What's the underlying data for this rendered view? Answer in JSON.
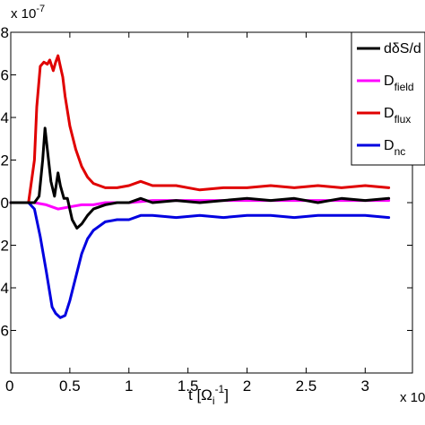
{
  "chart_data": {
    "type": "line",
    "xlabel": "t [Ω",
    "xlabel_sub": "i",
    "xlabel_sup": "-1",
    "xlabel_close": "]",
    "x_exponent": "x 10",
    "y_exponent": "x 10",
    "y_exponent_power": "-7",
    "xlim": [
      0,
      3.4
    ],
    "ylim": [
      -8,
      8
    ],
    "x_ticks": [
      0,
      0.5,
      1,
      1.5,
      2,
      2.5,
      3
    ],
    "x_tick_labels": [
      "0",
      "0.5",
      "1",
      "1.5",
      "2",
      "2.5",
      "3"
    ],
    "y_ticks": [
      8,
      6,
      4,
      2,
      0,
      -2,
      -4,
      -6
    ],
    "y_tick_labels": [
      "8",
      "6",
      "4",
      "2",
      "0",
      "2",
      "4",
      "6"
    ],
    "grid": false,
    "legend_position": "top-right",
    "series": [
      {
        "name": "dδS/dt",
        "legend_main": "dδS/d",
        "legend_sub": "",
        "color": "#000000",
        "x": [
          0,
          0.2,
          0.24,
          0.27,
          0.29,
          0.31,
          0.34,
          0.37,
          0.4,
          0.42,
          0.45,
          0.48,
          0.52,
          0.56,
          0.6,
          0.65,
          0.7,
          0.8,
          0.9,
          1.0,
          1.1,
          1.2,
          1.4,
          1.6,
          1.8,
          2.0,
          2.2,
          2.4,
          2.6,
          2.8,
          3.0,
          3.2
        ],
        "y": [
          0,
          0,
          0.3,
          2.0,
          3.5,
          2.5,
          1.0,
          0.3,
          1.4,
          0.8,
          0.2,
          0.2,
          -0.8,
          -1.2,
          -1.0,
          -0.6,
          -0.3,
          -0.1,
          0.0,
          0.0,
          0.2,
          0.0,
          0.1,
          0.0,
          0.1,
          0.2,
          0.1,
          0.2,
          0.0,
          0.2,
          0.1,
          0.2
        ]
      },
      {
        "name": "Dfield",
        "legend_main": "D",
        "legend_sub": "field",
        "color": "#ff00ff",
        "x": [
          0,
          0.2,
          0.3,
          0.4,
          0.5,
          0.6,
          0.7,
          0.8,
          0.9,
          1.0,
          1.2,
          1.5,
          2.0,
          2.5,
          3.0,
          3.2
        ],
        "y": [
          0,
          0,
          -0.1,
          -0.3,
          -0.2,
          -0.1,
          -0.1,
          0.0,
          0.0,
          0.0,
          0.1,
          0.1,
          0.1,
          0.1,
          0.1,
          0.1
        ]
      },
      {
        "name": "Dflux",
        "legend_main": "D",
        "legend_sub": "flux",
        "color": "#e00000",
        "x": [
          0,
          0.15,
          0.2,
          0.22,
          0.25,
          0.28,
          0.31,
          0.33,
          0.36,
          0.38,
          0.4,
          0.42,
          0.44,
          0.46,
          0.5,
          0.55,
          0.6,
          0.65,
          0.7,
          0.8,
          0.9,
          1.0,
          1.1,
          1.2,
          1.4,
          1.6,
          1.8,
          2.0,
          2.2,
          2.4,
          2.6,
          2.8,
          3.0,
          3.2
        ],
        "y": [
          0,
          0,
          2.0,
          4.5,
          6.4,
          6.6,
          6.5,
          6.7,
          6.2,
          6.6,
          6.9,
          6.4,
          5.9,
          5.0,
          3.6,
          2.5,
          1.7,
          1.2,
          0.9,
          0.7,
          0.7,
          0.8,
          1.0,
          0.8,
          0.8,
          0.6,
          0.7,
          0.7,
          0.8,
          0.7,
          0.8,
          0.7,
          0.8,
          0.7
        ]
      },
      {
        "name": "Dnc",
        "legend_main": "D",
        "legend_sub": "nc",
        "color": "#0000e0",
        "x": [
          0,
          0.15,
          0.2,
          0.25,
          0.3,
          0.35,
          0.38,
          0.42,
          0.46,
          0.5,
          0.55,
          0.6,
          0.65,
          0.7,
          0.8,
          0.9,
          1.0,
          1.1,
          1.2,
          1.4,
          1.6,
          1.8,
          2.0,
          2.2,
          2.4,
          2.6,
          2.8,
          3.0,
          3.2
        ],
        "y": [
          0,
          0,
          -0.3,
          -1.6,
          -3.2,
          -4.9,
          -5.2,
          -5.4,
          -5.3,
          -4.6,
          -3.5,
          -2.4,
          -1.7,
          -1.3,
          -0.9,
          -0.8,
          -0.8,
          -0.6,
          -0.6,
          -0.7,
          -0.6,
          -0.7,
          -0.6,
          -0.6,
          -0.7,
          -0.6,
          -0.6,
          -0.6,
          -0.7
        ]
      }
    ]
  }
}
